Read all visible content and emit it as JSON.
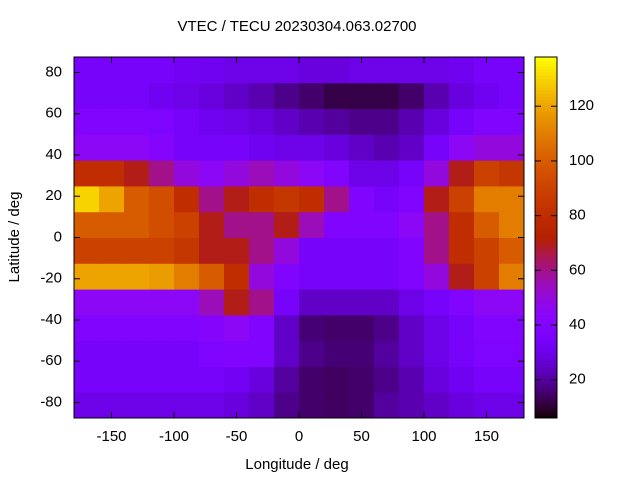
{
  "chart_data": {
    "type": "heatmap",
    "title": "VTEC / TECU 20230304.063.02700",
    "x_label": "Longitude / deg",
    "y_label": "Latitude / deg",
    "xlim": [
      -180,
      180
    ],
    "ylim": [
      -87.5,
      87.5
    ],
    "xticks": [
      -150,
      -100,
      -50,
      0,
      50,
      100,
      150
    ],
    "yticks": [
      -80,
      -60,
      -40,
      -20,
      0,
      20,
      40,
      60,
      80
    ],
    "colormap": "gnuplot",
    "clim": [
      6,
      138
    ],
    "cticks": [
      20,
      40,
      60,
      80,
      100,
      120
    ],
    "xbins": [
      -180,
      -160,
      -140,
      -120,
      -100,
      -80,
      -60,
      -40,
      -20,
      0,
      20,
      40,
      60,
      80,
      100,
      120,
      140,
      160,
      180
    ],
    "ybins": [
      -87.5,
      -75,
      -62.5,
      -50,
      -37.5,
      -25,
      -12.5,
      0,
      12.5,
      25,
      37.5,
      50,
      62.5,
      75,
      87.5
    ],
    "z": [
      [
        30,
        30,
        30,
        30,
        30,
        30,
        28,
        25,
        18,
        15,
        14,
        15,
        20,
        22,
        25,
        28,
        30,
        30
      ],
      [
        35,
        35,
        35,
        35,
        35,
        35,
        33,
        28,
        20,
        15,
        14,
        15,
        18,
        22,
        28,
        32,
        35,
        35
      ],
      [
        35,
        35,
        35,
        35,
        35,
        38,
        40,
        40,
        25,
        18,
        16,
        16,
        20,
        25,
        30,
        35,
        38,
        38
      ],
      [
        40,
        40,
        40,
        40,
        40,
        42,
        45,
        40,
        25,
        16,
        15,
        15,
        18,
        25,
        30,
        35,
        40,
        40
      ],
      [
        45,
        45,
        45,
        45,
        45,
        55,
        70,
        60,
        35,
        25,
        25,
        25,
        25,
        30,
        35,
        40,
        45,
        45
      ],
      [
        120,
        120,
        120,
        118,
        110,
        100,
        80,
        50,
        40,
        35,
        35,
        35,
        35,
        40,
        50,
        70,
        90,
        110
      ],
      [
        90,
        90,
        90,
        90,
        85,
        70,
        70,
        60,
        50,
        35,
        35,
        35,
        35,
        40,
        60,
        80,
        90,
        100
      ],
      [
        100,
        100,
        100,
        95,
        90,
        70,
        60,
        60,
        70,
        55,
        40,
        40,
        40,
        45,
        60,
        80,
        100,
        110
      ],
      [
        130,
        120,
        100,
        95,
        80,
        60,
        70,
        80,
        85,
        80,
        60,
        40,
        35,
        40,
        70,
        90,
        110,
        110
      ],
      [
        80,
        80,
        70,
        60,
        50,
        45,
        50,
        55,
        50,
        45,
        40,
        30,
        30,
        35,
        50,
        70,
        90,
        85
      ],
      [
        45,
        45,
        45,
        42,
        35,
        35,
        35,
        32,
        30,
        30,
        28,
        25,
        22,
        25,
        35,
        45,
        50,
        50
      ],
      [
        40,
        40,
        40,
        38,
        35,
        32,
        30,
        28,
        25,
        22,
        20,
        18,
        18,
        22,
        28,
        35,
        40,
        40
      ],
      [
        35,
        35,
        35,
        32,
        30,
        28,
        25,
        22,
        18,
        15,
        12,
        12,
        12,
        15,
        22,
        28,
        32,
        35
      ],
      [
        35,
        35,
        35,
        35,
        33,
        32,
        30,
        30,
        30,
        28,
        28,
        30,
        30,
        30,
        30,
        32,
        35,
        35
      ]
    ]
  }
}
